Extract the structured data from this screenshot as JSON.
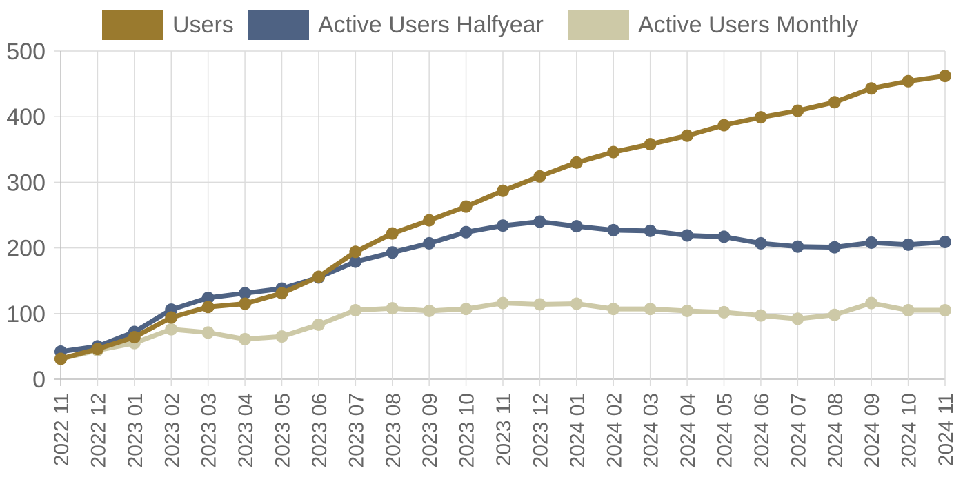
{
  "chart_data": {
    "type": "line",
    "categories": [
      "2022 11",
      "2022 12",
      "2023 01",
      "2023 02",
      "2023 03",
      "2023 04",
      "2023 05",
      "2023 06",
      "2023 07",
      "2023 08",
      "2023 09",
      "2023 10",
      "2023 11",
      "2023 12",
      "2024 01",
      "2024 02",
      "2024 03",
      "2024 04",
      "2024 05",
      "2024 06",
      "2024 07",
      "2024 08",
      "2024 09",
      "2024 10",
      "2024 11"
    ],
    "ylim": [
      0,
      500
    ],
    "yticks": [
      0,
      100,
      200,
      300,
      400,
      500
    ],
    "grid": true,
    "legend_position": "top",
    "series": [
      {
        "name": "Users",
        "color": "#9a7a2e",
        "values": [
          31,
          46,
          64,
          94,
          110,
          115,
          131,
          156,
          194,
          222,
          242,
          263,
          287,
          309,
          330,
          346,
          358,
          371,
          387,
          399,
          409,
          422,
          443,
          454,
          462
        ]
      },
      {
        "name": "Active Users Halfyear",
        "color": "#4e6283",
        "values": [
          42,
          50,
          72,
          106,
          124,
          131,
          138,
          155,
          179,
          193,
          207,
          224,
          234,
          240,
          233,
          227,
          226,
          219,
          217,
          207,
          202,
          201,
          208,
          205,
          209
        ]
      },
      {
        "name": "Active Users Monthly",
        "color": "#cdc9a7",
        "values": [
          31,
          44,
          55,
          76,
          71,
          61,
          65,
          83,
          105,
          108,
          104,
          107,
          116,
          114,
          115,
          107,
          107,
          104,
          102,
          97,
          92,
          98,
          116,
          105,
          105
        ]
      }
    ]
  }
}
